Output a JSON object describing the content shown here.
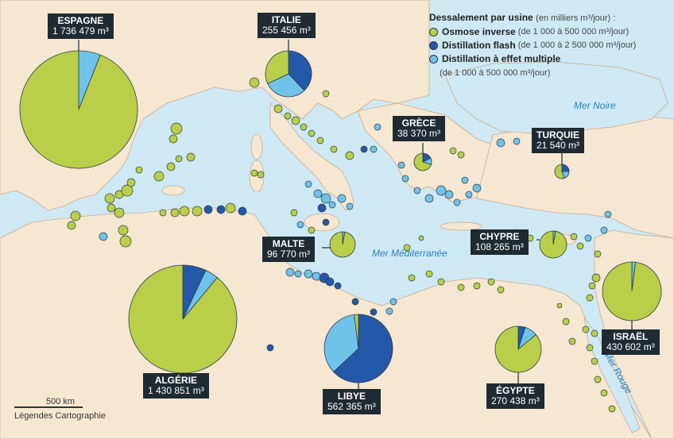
{
  "legend": {
    "title": "Dessalement par usine",
    "unit": "(en milliers m³/jour) :",
    "items": [
      {
        "label": "Osmose inverse",
        "range": "(de 1 000 à 500 000 m³/jour)",
        "color": "#b9cf4a"
      },
      {
        "label": "Distillation flash",
        "range": "(de 1 000 à 2 500 000 m³/jour)",
        "color": "#2458a8"
      },
      {
        "label": "Distillation à effet multiple",
        "range": "(de 1 000 à 500 000 m³/jour)",
        "color": "#6fc3ea"
      }
    ]
  },
  "countries": [
    {
      "name": "ESPAGNE",
      "value": "1 736 479",
      "unit": "m³",
      "shares": {
        "osmose": 0.94,
        "flash": 0.0,
        "multiple": 0.06
      }
    },
    {
      "name": "ITALIE",
      "value": "255 456",
      "unit": "m³",
      "shares": {
        "osmose": 0.32,
        "flash": 0.38,
        "multiple": 0.3
      }
    },
    {
      "name": "GRÈCE",
      "value": "38 370",
      "unit": "m³",
      "shares": {
        "osmose": 0.7,
        "flash": 0.18,
        "multiple": 0.12
      }
    },
    {
      "name": "TURQUIE",
      "value": "21 540",
      "unit": "m³",
      "shares": {
        "osmose": 0.55,
        "flash": 0.25,
        "multiple": 0.2
      }
    },
    {
      "name": "MALTE",
      "value": "96 770",
      "unit": "m³",
      "shares": {
        "osmose": 0.97,
        "flash": 0.0,
        "multiple": 0.03
      }
    },
    {
      "name": "CHYPRE",
      "value": "108 265",
      "unit": "m³",
      "shares": {
        "osmose": 0.97,
        "flash": 0.0,
        "multiple": 0.03
      }
    },
    {
      "name": "ALGÉRIE",
      "value": "1 430 851",
      "unit": "m³",
      "shares": {
        "osmose": 0.89,
        "flash": 0.07,
        "multiple": 0.04
      }
    },
    {
      "name": "LIBYE",
      "value": "562 365",
      "unit": "m³",
      "shares": {
        "osmose": 0.02,
        "flash": 0.63,
        "multiple": 0.35
      }
    },
    {
      "name": "ÉGYPTE",
      "value": "270 438",
      "unit": "m³",
      "shares": {
        "osmose": 0.86,
        "flash": 0.05,
        "multiple": 0.09
      }
    },
    {
      "name": "ISRAËL",
      "value": "430 602",
      "unit": "m³",
      "shares": {
        "osmose": 0.98,
        "flash": 0.0,
        "multiple": 0.02
      }
    }
  ],
  "seas": [
    "Mer Noire",
    "Mer Méditerranée",
    "Mer Rouge"
  ],
  "scale": "500 km",
  "credit": "Légendes Cartographie"
}
